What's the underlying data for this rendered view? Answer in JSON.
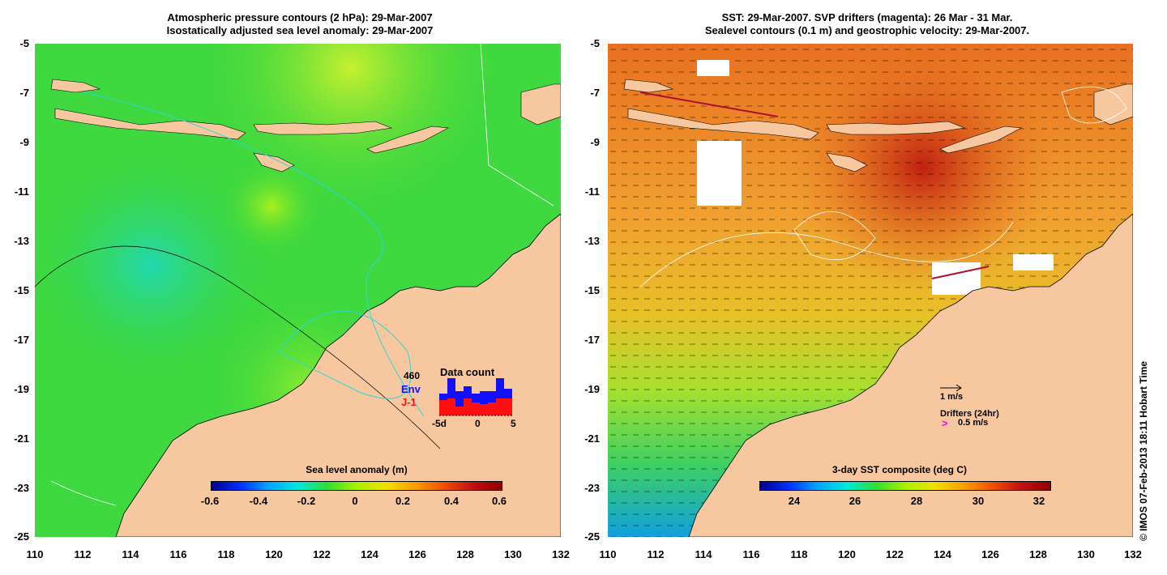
{
  "left_panel": {
    "title_line1": "Atmospheric pressure contours (2 hPa): 29-Mar-2007",
    "title_line2": "Isostatically adjusted sea level anomaly: 29-Mar-2007",
    "colorbar_label": "Sea level anomaly (m)",
    "colorbar_ticks": [
      "-0.6",
      "-0.4",
      "-0.2",
      "0",
      "0.2",
      "0.4",
      "0.6"
    ],
    "data_count": {
      "title": "Data count",
      "max_label": "460",
      "env_label": "Env",
      "j1_label": "J-1",
      "axis_labels": [
        "-5d",
        "0",
        "5"
      ],
      "env_color": "#1010ff",
      "j1_color": "#ff1010"
    }
  },
  "right_panel": {
    "title_line1": "SST: 29-Mar-2007. SVP drifters (magenta): 26 Mar - 31 Mar.",
    "title_line2": "Sealevel contours (0.1 m) and geostrophic velocity: 29-Mar-2007.",
    "colorbar_label": "3-day SST composite (deg C)",
    "colorbar_ticks": [
      "24",
      "26",
      "28",
      "30",
      "32"
    ],
    "velocity_legend": "1 m/s",
    "drifters_label": "Drifters (24hr)",
    "drifters_speed": "0.5 m/s",
    "drifter_color": "#ff00ff"
  },
  "axes": {
    "y_ticks": [
      "-5",
      "-7",
      "-9",
      "-11",
      "-13",
      "-15",
      "-17",
      "-19",
      "-21",
      "-23",
      "-25"
    ],
    "x_ticks": [
      "110",
      "112",
      "114",
      "116",
      "118",
      "120",
      "122",
      "124",
      "126",
      "128",
      "130",
      "132"
    ]
  },
  "credit": "© IMOS 07-Feb-2013 18:11 Hobart Time",
  "colors": {
    "land": "#f7c79f",
    "sla_ocean": "#38d838",
    "sst_ocean": "#f0a020"
  }
}
